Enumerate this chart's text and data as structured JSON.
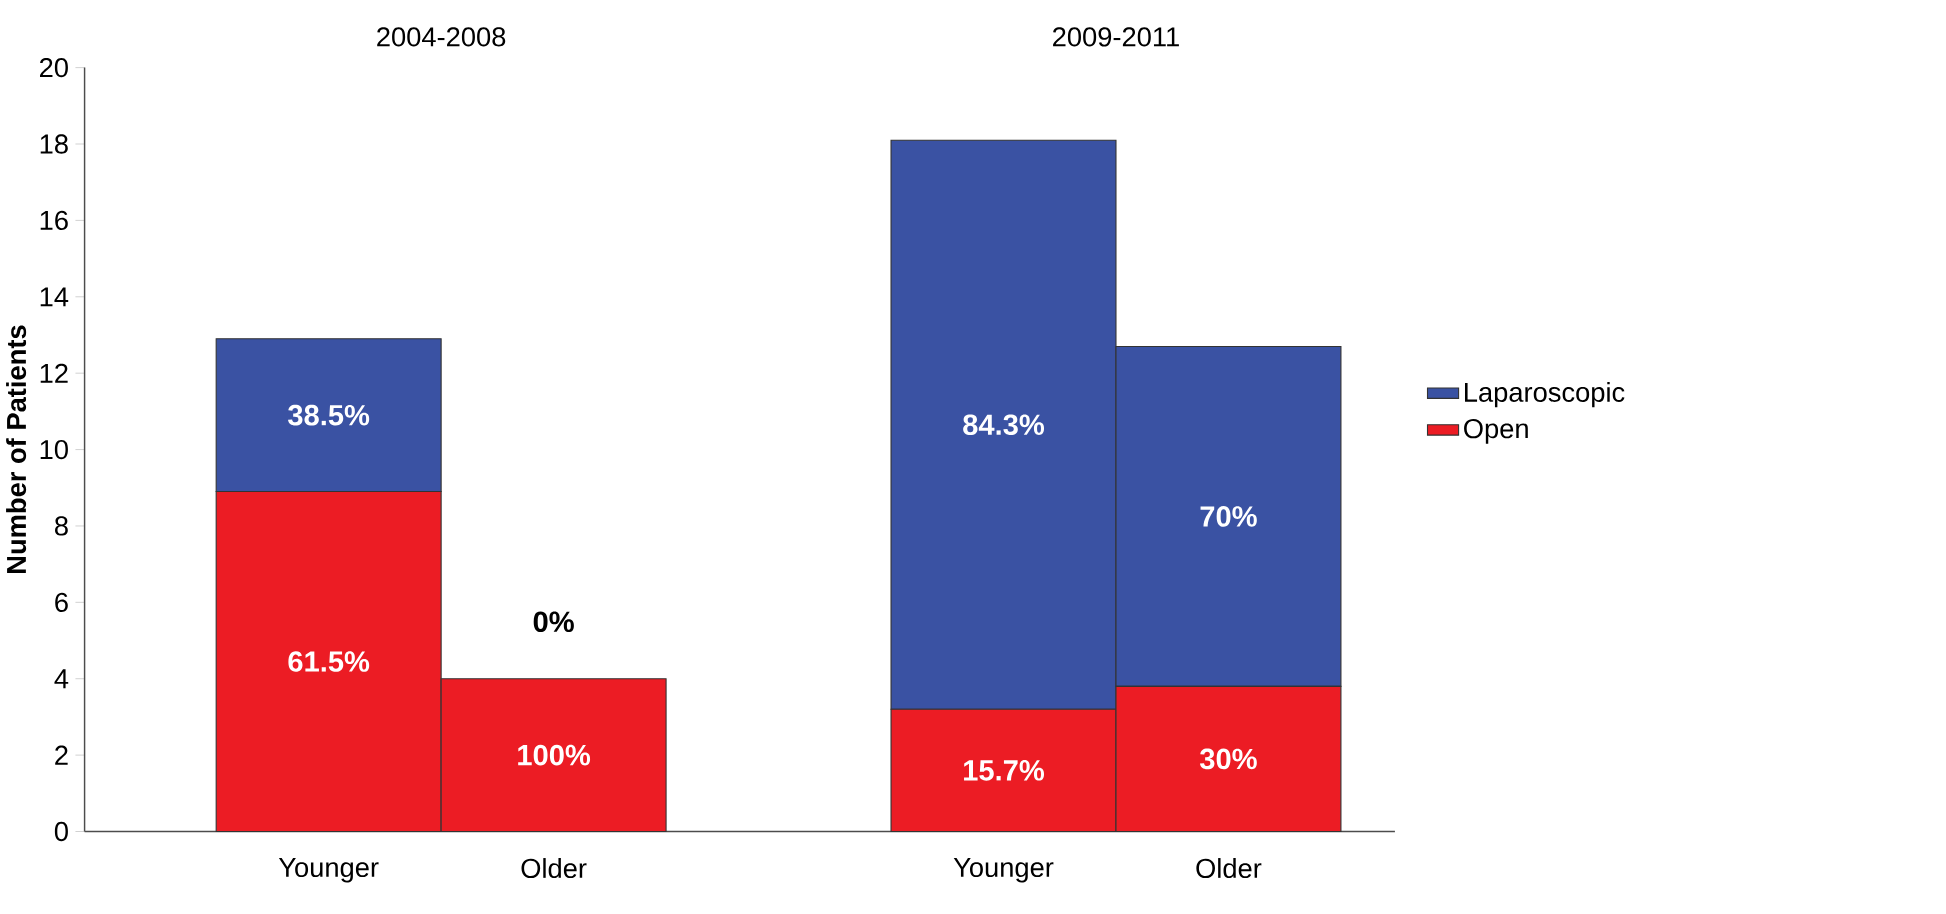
{
  "chart_data": {
    "type": "bar",
    "stacked": true,
    "ylabel": "Number of Patients",
    "categories": [
      "Younger",
      "Older",
      null,
      "Younger",
      "Older"
    ],
    "series": [
      {
        "name": "Open",
        "color": "#ec1c24",
        "values": [
          8.9,
          4,
          null,
          3.2,
          3.8
        ]
      },
      {
        "name": "Laparoscopic",
        "color": "#3a52a3",
        "values": [
          4,
          0,
          null,
          14.9,
          8.9
        ]
      }
    ],
    "annotations": [
      "2004-2008",
      "2009-2011",
      "61.5%",
      "100%",
      "15.7%",
      "30%",
      "38.5%",
      "0%",
      "84.3%",
      "70%"
    ],
    "ylim": [
      0,
      20
    ],
    "yticks": [
      0,
      2,
      4,
      6,
      8,
      10,
      12,
      14,
      16,
      18,
      20
    ],
    "legend": "right"
  }
}
